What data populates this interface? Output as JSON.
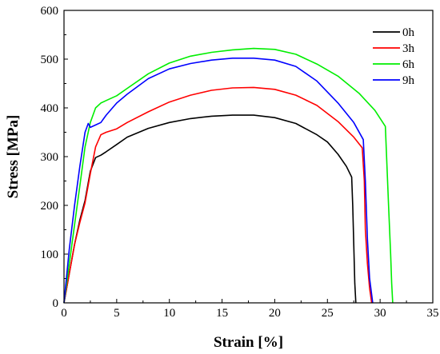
{
  "chart_data": {
    "type": "line",
    "xlabel": "Strain [%]",
    "ylabel": "Stress [MPa]",
    "xlim": [
      0,
      35
    ],
    "ylim": [
      0,
      600
    ],
    "xticks": [
      0,
      5,
      10,
      15,
      20,
      25,
      30,
      35
    ],
    "yticks": [
      0,
      100,
      200,
      300,
      400,
      500,
      600
    ],
    "legend_position": "top-right",
    "grid": false,
    "series": [
      {
        "name": "0h",
        "color": "#000000",
        "x": [
          0,
          0.5,
          1.0,
          1.5,
          2.0,
          2.5,
          3.0,
          3.5,
          4.0,
          5.0,
          6.0,
          8.0,
          10.0,
          12.0,
          14.0,
          16.0,
          18.0,
          20.0,
          22.0,
          24.0,
          25.0,
          26.0,
          26.8,
          27.3,
          27.4,
          27.5,
          27.6,
          27.7
        ],
        "y": [
          0,
          60,
          120,
          170,
          210,
          270,
          298,
          303,
          310,
          325,
          340,
          358,
          370,
          378,
          383,
          385,
          385,
          380,
          368,
          345,
          330,
          305,
          280,
          258,
          200,
          120,
          40,
          0
        ]
      },
      {
        "name": "3h",
        "color": "#ff0000",
        "x": [
          0,
          0.5,
          1.0,
          1.5,
          2.0,
          2.5,
          3.0,
          3.5,
          4.0,
          5.0,
          6.0,
          8.0,
          10.0,
          12.0,
          14.0,
          16.0,
          18.0,
          20.0,
          22.0,
          24.0,
          26.0,
          27.5,
          28.3,
          28.5,
          28.6,
          28.8,
          29.0,
          29.2
        ],
        "y": [
          0,
          60,
          120,
          165,
          205,
          265,
          320,
          345,
          350,
          357,
          370,
          392,
          412,
          426,
          436,
          441,
          442,
          438,
          426,
          405,
          372,
          340,
          318,
          250,
          150,
          80,
          30,
          0
        ]
      },
      {
        "name": "6h",
        "color": "#00ee00",
        "x": [
          0,
          0.5,
          1.0,
          1.5,
          2.0,
          2.5,
          3.0,
          3.5,
          4.0,
          5.0,
          6.0,
          8.0,
          10.0,
          12.0,
          14.0,
          16.0,
          18.0,
          20.0,
          22.0,
          24.0,
          26.0,
          28.0,
          29.5,
          30.5,
          30.8,
          31.0,
          31.1,
          31.2
        ],
        "y": [
          0,
          80,
          160,
          240,
          320,
          370,
          400,
          410,
          415,
          425,
          440,
          470,
          492,
          506,
          514,
          519,
          522,
          520,
          510,
          490,
          465,
          430,
          395,
          362,
          200,
          100,
          40,
          0
        ]
      },
      {
        "name": "9h",
        "color": "#0000ff",
        "x": [
          0,
          0.5,
          1.0,
          1.5,
          2.0,
          2.3,
          2.5,
          3.0,
          3.5,
          4.0,
          5.0,
          6.0,
          8.0,
          10.0,
          12.0,
          14.0,
          16.0,
          18.0,
          20.0,
          22.0,
          24.0,
          26.0,
          27.5,
          28.4,
          28.6,
          28.8,
          29.0,
          29.3
        ],
        "y": [
          0,
          110,
          200,
          280,
          350,
          368,
          360,
          365,
          370,
          385,
          410,
          428,
          460,
          480,
          491,
          498,
          502,
          502,
          498,
          485,
          455,
          410,
          370,
          335,
          250,
          130,
          50,
          0
        ]
      }
    ]
  }
}
